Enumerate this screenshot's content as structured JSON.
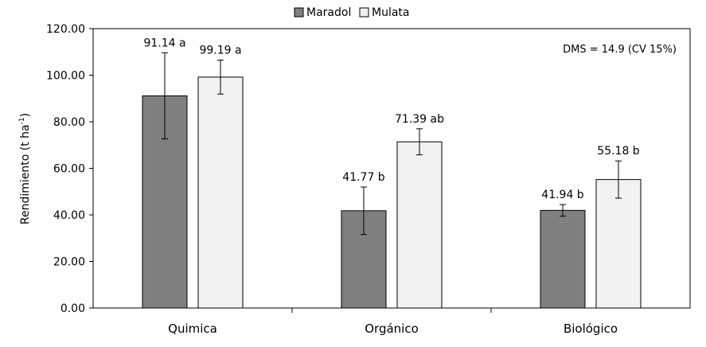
{
  "chart_data": {
    "type": "bar",
    "categories": [
      "Quimica",
      "Orgánico",
      "Biológico"
    ],
    "series": [
      {
        "name": "Maradol",
        "color": "#7f7f7f",
        "values": [
          91.14,
          41.77,
          41.94
        ],
        "errors": [
          18.5,
          10.2,
          2.5
        ],
        "labels": [
          "91.14 a",
          "41.77 b",
          "41.94 b"
        ]
      },
      {
        "name": "Mulata",
        "color": "#f2f2f2",
        "values": [
          99.19,
          71.39,
          55.18
        ],
        "errors": [
          7.3,
          5.6,
          8.0
        ],
        "labels": [
          "99.19 a",
          "71.39 ab",
          "55.18 b"
        ]
      }
    ],
    "ylabel_main": "Rendimiento (t ha",
    "ylabel_sup": "-1",
    "ylabel_end": ")",
    "ylim": [
      0,
      120
    ],
    "yticks": [
      "0.00",
      "20.00",
      "40.00",
      "60.00",
      "80.00",
      "100.00",
      "120.00"
    ],
    "annotation": "DMS = 14.9 (CV 15%)",
    "legend_position": "top-center",
    "grid": false
  }
}
